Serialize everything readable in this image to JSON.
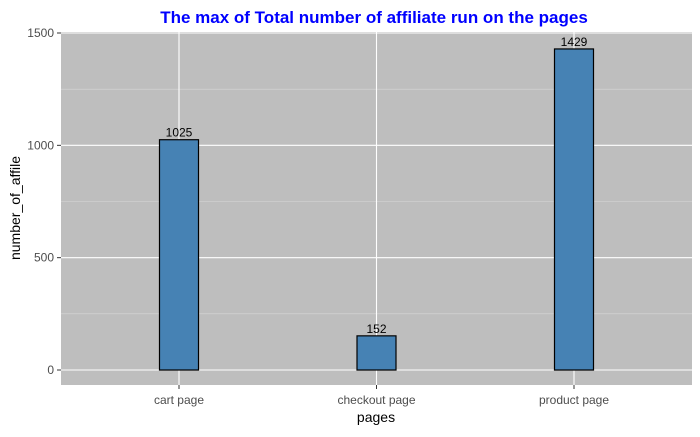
{
  "chart_data": {
    "type": "bar",
    "title": "The max of Total number of affiliate run on the pages",
    "xlabel": "pages",
    "ylabel": "number_of_affile",
    "categories": [
      "cart page",
      "checkout page",
      "product page"
    ],
    "values": [
      1025,
      152,
      1429
    ],
    "data_labels": [
      "1025",
      "152",
      "1429"
    ],
    "ylim": [
      -75,
      1500
    ],
    "yticks": [
      0,
      500,
      1000,
      1500
    ],
    "ytick_labels": [
      "0",
      "500",
      "1000",
      "1500"
    ],
    "grid": true,
    "legend": "none"
  },
  "colors": {
    "title": "#0000ff",
    "bar_fill": "#4682b4",
    "bar_stroke": "#000000",
    "panel_background": "#bebebe",
    "grid_major": "#ffffff",
    "grid_minor": "#d8d8d8",
    "axis_text": "#4d4d4d",
    "axis_title": "#000000"
  }
}
